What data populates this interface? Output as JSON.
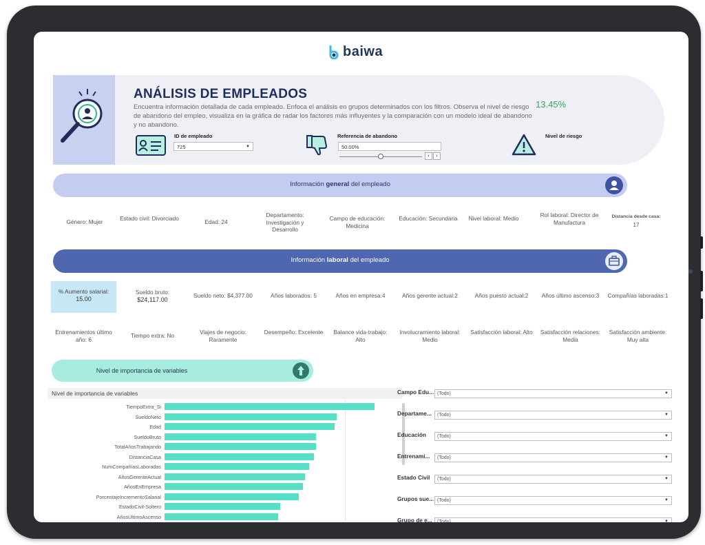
{
  "brand": {
    "name": "baiwa",
    "mark_color": "#3fb8e8",
    "text_color": "#1d3557"
  },
  "header": {
    "title": "ANÁLISIS DE EMPLEADOS",
    "description": "Encuentra información detallada de cada empleado. Enfoca el análisis en grupos determinados con los filtros. Observa el nivel de riesgo de abandono del empleo, visualiza en la gráfica de radar los factores más influyentes y la comparación con un modelo ideal de abandono y no abandono.",
    "employee_id": {
      "label": "ID de empleado",
      "value": "725"
    },
    "reference": {
      "label": "Referencia de abandono",
      "value": "50.00%",
      "slider_fraction": 0.5
    },
    "risk": {
      "label": "Nivel de riesgo",
      "value": "13.45%",
      "color": "#3aa55b"
    }
  },
  "general_band": {
    "pre": "Información ",
    "bold": "general",
    "post": " del empleado",
    "color": "#c5ccf2",
    "icon": "person-icon"
  },
  "general_info": [
    {
      "text": "Género: Mujer"
    },
    {
      "text": "Estado civil: Divorciado"
    },
    {
      "text": "Edad: 24"
    },
    {
      "text": "Departamento: Investigación y Desarrollo"
    },
    {
      "text": "Campo de educación: Medicina"
    },
    {
      "text": "Educación: Secundaria"
    },
    {
      "text": "Nivel laboral: Medio"
    },
    {
      "text": "Rol laboral: Director de Manufactura"
    },
    {
      "label": "Distancia desde casa:",
      "value": "17"
    }
  ],
  "labor_band": {
    "pre": "Información ",
    "bold": "laboral",
    "post": " del empleado",
    "color": "#4f66b0",
    "icon": "briefcase-icon"
  },
  "labor_info_row1": [
    {
      "text": "% Aumento salarial:",
      "value": "15.00"
    },
    {
      "text": "Sueldo bruto:",
      "value": "$24,117.00"
    },
    {
      "text": "Sueldo neto: $4,377.00"
    },
    {
      "text": "Años laborados: 5"
    },
    {
      "text": "Años en empresa:4"
    },
    {
      "text": "Años gerente actual:2"
    },
    {
      "text": "Años puesto actual:2"
    },
    {
      "text": "Años último ascenso:3"
    },
    {
      "text": "Compañías laboradas:1"
    }
  ],
  "labor_info_row2": [
    {
      "text": "Entrenamientos último año: 6"
    },
    {
      "text": "Tiempo extra: No"
    },
    {
      "text": "Viajes de negocio: Raramente"
    },
    {
      "text": "Desempeño: Excelente"
    },
    {
      "text": "Balance vida-trabajo: Alto"
    },
    {
      "text": "Involucramiento laboral: Medio"
    },
    {
      "text": "Satisfacción laboral: Alto"
    },
    {
      "text": "Satisfacción relaciones: Media"
    },
    {
      "text": "Satisfacción ambiente: Muy alta"
    }
  ],
  "importance_band": {
    "label": "Nivel de importancia de variables",
    "icon": "arrow-up-icon"
  },
  "chart_data": {
    "type": "bar",
    "title": "Nivel de importancia de variables",
    "orientation": "horizontal",
    "categories": [
      "TiempoExtra_Si",
      "SueldoNeto",
      "Edad",
      "SueldoBruto",
      "TotalAñosTrabajando",
      "DistanciaCasa",
      "NumCompañíasLaboradas",
      "AñosGerenteActual",
      "AñosEnEmpresa",
      "PorcentajeIncrementoSalarial",
      "EstadoCivil-Soltero",
      "AñosUltimoAscenso"
    ],
    "values": [
      1.0,
      0.82,
      0.81,
      0.72,
      0.72,
      0.71,
      0.69,
      0.67,
      0.66,
      0.64,
      0.55,
      0.54
    ],
    "xlim": [
      0,
      1
    ],
    "color": "#57e0c8"
  },
  "filters": [
    {
      "label": "Campo Edu...",
      "value": "(Todo)"
    },
    {
      "label": "Departame...",
      "value": "(Todo)"
    },
    {
      "label": "Educación",
      "value": "(Todo)"
    },
    {
      "label": "Entrenami...",
      "value": "(Todo)"
    },
    {
      "label": "Estado Civil",
      "value": "(Todo)"
    },
    {
      "label": "Grupos sue...",
      "value": "(Todo)"
    },
    {
      "label": "Grupo de e...",
      "value": "(Todo)"
    }
  ]
}
